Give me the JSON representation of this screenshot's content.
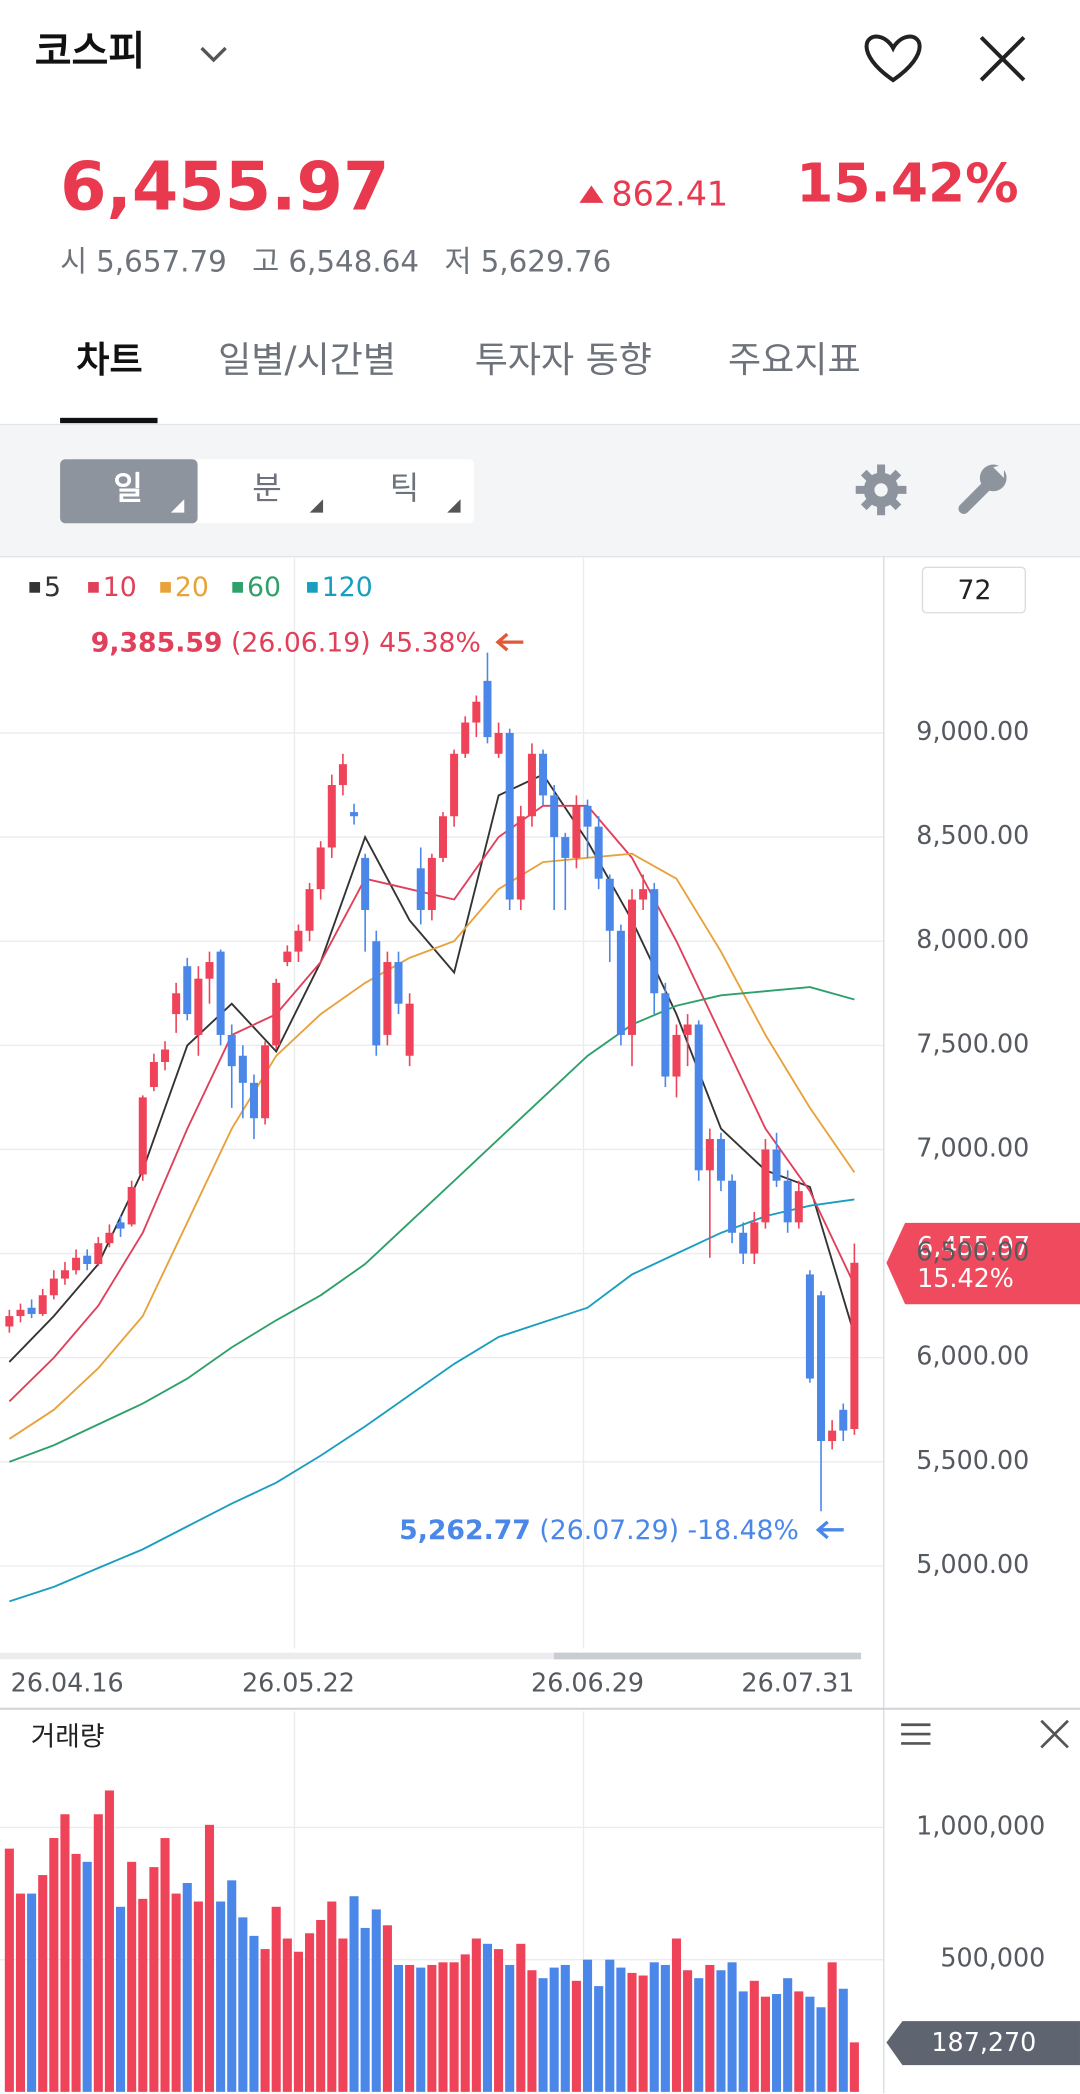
{
  "header": {
    "title": "코스피",
    "price": "6,455.97",
    "change": "862.41",
    "change_pct": "15.42%",
    "open_label": "시",
    "open": "5,657.79",
    "high_label": "고",
    "high": "6,548.64",
    "low_label": "저",
    "low": "5,629.76"
  },
  "tabs": [
    "차트",
    "일별/시간별",
    "투자자 동향",
    "주요지표"
  ],
  "periods": [
    "일",
    "분",
    "틱"
  ],
  "chart_data": [
    {
      "type": "candlestick",
      "up_color": "#ee4359",
      "down_color": "#4a87e8",
      "categories": [
        "26.04.16",
        null,
        null,
        null,
        null,
        null,
        null,
        null,
        null,
        null,
        null,
        null,
        null,
        null,
        null,
        null,
        null,
        null,
        null,
        null,
        null,
        null,
        null,
        null,
        null,
        null,
        "26.05.22",
        null,
        null,
        null,
        null,
        null,
        null,
        null,
        null,
        null,
        null,
        null,
        null,
        null,
        null,
        null,
        null,
        null,
        null,
        null,
        null,
        null,
        null,
        null,
        null,
        null,
        "26.06.29",
        null,
        null,
        null,
        null,
        null,
        null,
        null,
        null,
        null,
        null,
        null,
        null,
        null,
        null,
        null,
        null,
        null,
        null,
        null,
        null,
        null,
        null,
        null,
        "26.07.31"
      ],
      "candles": [
        [
          6150,
          6230,
          6120,
          6200
        ],
        [
          6200,
          6260,
          6170,
          6230
        ],
        [
          6240,
          6280,
          6190,
          6210
        ],
        [
          6210,
          6330,
          6200,
          6300
        ],
        [
          6300,
          6420,
          6280,
          6380
        ],
        [
          6380,
          6460,
          6350,
          6420
        ],
        [
          6420,
          6520,
          6400,
          6480
        ],
        [
          6490,
          6520,
          6420,
          6450
        ],
        [
          6450,
          6580,
          6440,
          6550
        ],
        [
          6550,
          6640,
          6530,
          6600
        ],
        [
          6650,
          6680,
          6580,
          6620
        ],
        [
          6640,
          6850,
          6630,
          6820
        ],
        [
          6880,
          7260,
          6850,
          7250
        ],
        [
          7300,
          7460,
          7280,
          7420
        ],
        [
          7420,
          7520,
          7380,
          7480
        ],
        [
          7650,
          7800,
          7560,
          7750
        ],
        [
          7880,
          7920,
          7620,
          7650
        ],
        [
          7550,
          7880,
          7450,
          7820
        ],
        [
          7820,
          7950,
          7700,
          7900
        ],
        [
          7950,
          7960,
          7500,
          7550
        ],
        [
          7550,
          7600,
          7200,
          7400
        ],
        [
          7450,
          7500,
          7150,
          7320
        ],
        [
          7320,
          7360,
          7050,
          7150
        ],
        [
          7150,
          7520,
          7120,
          7500
        ],
        [
          7500,
          7820,
          7480,
          7800
        ],
        [
          7900,
          7980,
          7880,
          7950
        ],
        [
          7950,
          8080,
          7900,
          8050
        ],
        [
          8050,
          8280,
          8000,
          8250
        ],
        [
          8250,
          8480,
          8200,
          8450
        ],
        [
          8450,
          8800,
          8400,
          8750
        ],
        [
          8750,
          8900,
          8700,
          8850
        ],
        [
          8620,
          8660,
          8560,
          8600
        ],
        [
          8400,
          8420,
          7950,
          8150
        ],
        [
          8000,
          8050,
          7450,
          7500
        ],
        [
          7550,
          7950,
          7500,
          7900
        ],
        [
          7900,
          7950,
          7650,
          7700
        ],
        [
          7450,
          7750,
          7400,
          7700
        ],
        [
          8350,
          8450,
          8080,
          8150
        ],
        [
          8150,
          8420,
          8100,
          8400
        ],
        [
          8400,
          8620,
          8380,
          8600
        ],
        [
          8600,
          8920,
          8550,
          8900
        ],
        [
          8900,
          9080,
          8880,
          9050
        ],
        [
          9050,
          9180,
          8980,
          9150
        ],
        [
          9250,
          9385.59,
          8950,
          8980
        ],
        [
          8900,
          9050,
          8880,
          9000
        ],
        [
          9000,
          9020,
          8150,
          8200
        ],
        [
          8200,
          8650,
          8150,
          8600
        ],
        [
          8600,
          8950,
          8550,
          8900
        ],
        [
          8900,
          8920,
          8650,
          8700
        ],
        [
          8700,
          8750,
          8150,
          8500
        ],
        [
          8500,
          8520,
          8150,
          8400
        ],
        [
          8400,
          8700,
          8350,
          8650
        ],
        [
          8650,
          8680,
          8400,
          8550
        ],
        [
          8550,
          8600,
          8250,
          8300
        ],
        [
          8300,
          8320,
          7900,
          8050
        ],
        [
          8050,
          8080,
          7500,
          7550
        ],
        [
          7550,
          8250,
          7400,
          8200
        ],
        [
          8200,
          8320,
          8150,
          8250
        ],
        [
          8250,
          8280,
          7650,
          7750
        ],
        [
          7750,
          7800,
          7300,
          7350
        ],
        [
          7350,
          7600,
          7250,
          7550
        ],
        [
          7550,
          7650,
          7400,
          7600
        ],
        [
          7600,
          7620,
          6850,
          6900
        ],
        [
          6900,
          7100,
          6480,
          7050
        ],
        [
          7050,
          7080,
          6800,
          6850
        ],
        [
          6850,
          6880,
          6550,
          6600
        ],
        [
          6600,
          6650,
          6450,
          6500
        ],
        [
          6500,
          6700,
          6450,
          6650
        ],
        [
          6650,
          7050,
          6620,
          7000
        ],
        [
          7000,
          7080,
          6820,
          6850
        ],
        [
          6850,
          6900,
          6600,
          6650
        ],
        [
          6650,
          6850,
          6620,
          6800
        ],
        [
          6400,
          6420,
          5880,
          5900
        ],
        [
          6300,
          6320,
          5262.77,
          5600
        ],
        [
          5600,
          5700,
          5560,
          5650
        ],
        [
          5750,
          5780,
          5600,
          5650
        ],
        [
          5657.79,
          6548.64,
          5629.76,
          6455.97
        ]
      ],
      "ylim": [
        4603,
        9840
      ],
      "yticks": [
        {
          "value": 5000,
          "label": "5,000.00"
        },
        {
          "value": 5500,
          "label": "5,500.00"
        },
        {
          "value": 6000,
          "label": "6,000.00"
        },
        {
          "value": 6500,
          "label": "6,500.00"
        },
        {
          "value": 7000,
          "label": "7,000.00"
        },
        {
          "value": 7500,
          "label": "7,500.00"
        },
        {
          "value": 8000,
          "label": "8,000.00"
        },
        {
          "value": 8500,
          "label": "8,500.00"
        },
        {
          "value": 9000,
          "label": "9,000.00"
        }
      ],
      "grid": true,
      "series": [
        {
          "name": "5",
          "color": "#333333",
          "x": [
            0,
            4,
            8,
            12,
            16,
            20,
            24,
            28,
            32,
            36,
            40,
            44,
            48,
            52,
            56,
            60,
            64,
            68,
            72,
            76
          ],
          "values": [
            5980,
            6200,
            6450,
            6900,
            7500,
            7700,
            7470,
            7900,
            8500,
            8100,
            7850,
            8700,
            8800,
            8480,
            8100,
            7650,
            7100,
            6900,
            6820,
            6110
          ]
        },
        {
          "name": "10",
          "color": "#e0405a",
          "x": [
            0,
            4,
            8,
            12,
            16,
            20,
            24,
            28,
            32,
            36,
            40,
            44,
            48,
            52,
            56,
            60,
            64,
            68,
            72,
            76
          ],
          "values": [
            5790,
            6000,
            6250,
            6600,
            7100,
            7550,
            7650,
            7900,
            8300,
            8250,
            8200,
            8500,
            8650,
            8650,
            8400,
            8000,
            7550,
            7100,
            6800,
            6350
          ]
        },
        {
          "name": "20",
          "color": "#e8a23c",
          "x": [
            0,
            4,
            8,
            12,
            16,
            20,
            24,
            28,
            32,
            36,
            40,
            44,
            48,
            52,
            56,
            60,
            64,
            68,
            72,
            76
          ],
          "values": [
            5610,
            5750,
            5950,
            6200,
            6650,
            7100,
            7450,
            7650,
            7800,
            7920,
            8000,
            8250,
            8380,
            8400,
            8420,
            8300,
            7950,
            7550,
            7200,
            6890
          ]
        },
        {
          "name": "60",
          "color": "#2ea06a",
          "x": [
            0,
            4,
            8,
            12,
            16,
            20,
            24,
            28,
            32,
            36,
            40,
            44,
            48,
            52,
            56,
            60,
            64,
            68,
            72,
            76
          ],
          "values": [
            5500,
            5580,
            5680,
            5780,
            5900,
            6050,
            6180,
            6300,
            6450,
            6650,
            6850,
            7050,
            7250,
            7450,
            7600,
            7690,
            7740,
            7760,
            7780,
            7720
          ]
        },
        {
          "name": "120",
          "color": "#1a9ec0",
          "x": [
            0,
            4,
            8,
            12,
            16,
            20,
            24,
            28,
            32,
            36,
            40,
            44,
            48,
            52,
            56,
            60,
            64,
            68,
            72,
            76
          ],
          "values": [
            4830,
            4900,
            4990,
            5080,
            5190,
            5300,
            5400,
            5530,
            5670,
            5820,
            5970,
            6100,
            6170,
            6240,
            6400,
            6500,
            6600,
            6680,
            6730,
            6760
          ]
        }
      ],
      "period_input": "72",
      "max_annotation": {
        "price": "9,385.59",
        "date": "(26.06.19)",
        "change": "45.38%"
      },
      "min_annotation": {
        "price": "5,262.77",
        "date": "(26.07.29)",
        "change": "-18.48%"
      }
    },
    {
      "type": "bar",
      "title": "거래량",
      "values": [
        920000,
        750000,
        750000,
        820000,
        960000,
        1050000,
        900000,
        870000,
        1050000,
        1140000,
        700000,
        870000,
        730000,
        850000,
        960000,
        750000,
        790000,
        720000,
        1010000,
        720000,
        800000,
        660000,
        590000,
        540000,
        700000,
        580000,
        530000,
        600000,
        650000,
        720000,
        580000,
        740000,
        620000,
        690000,
        630000,
        480000,
        480000,
        470000,
        480000,
        490000,
        490000,
        520000,
        580000,
        560000,
        540000,
        480000,
        560000,
        460000,
        430000,
        470000,
        480000,
        420000,
        500000,
        400000,
        500000,
        470000,
        450000,
        440000,
        490000,
        480000,
        580000,
        460000,
        430000,
        480000,
        460000,
        490000,
        380000,
        420000,
        360000,
        370000,
        430000,
        380000,
        360000,
        320000,
        490000,
        390000,
        187270
      ],
      "current_label": "187,270",
      "ylim": [
        0,
        1439000
      ],
      "yticks": [
        {
          "value": 500000,
          "label": "500,000"
        },
        {
          "value": 1000000,
          "label": "1,000,000"
        }
      ],
      "grid": true
    }
  ]
}
